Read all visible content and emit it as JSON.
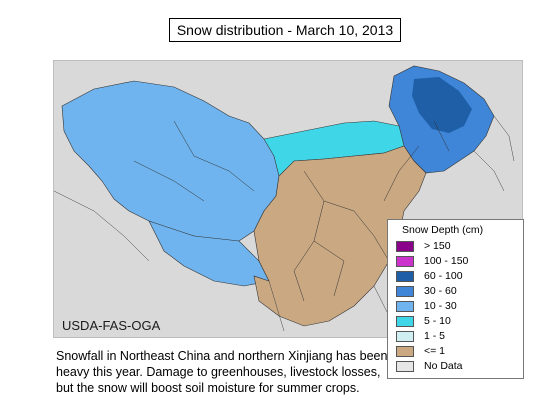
{
  "title": "Snow distribution - March 10, 2013",
  "credit": "USDA-FAS-OGA",
  "legend": {
    "title": "Snow Depth (cm)",
    "items": [
      {
        "label": "> 150",
        "color": "#8b008b"
      },
      {
        "label": "100 - 150",
        "color": "#cc33cc"
      },
      {
        "label": "60 - 100",
        "color": "#1f5fa8"
      },
      {
        "label": "30 - 60",
        "color": "#3f86d8"
      },
      {
        "label": "10 - 30",
        "color": "#6fb4ee"
      },
      {
        "label": "5 - 10",
        "color": "#3fd6e8"
      },
      {
        "label": "1 - 5",
        "color": "#cfeff3"
      },
      {
        "label": "<= 1",
        "color": "#c9a882"
      },
      {
        "label": "No Data",
        "color": "#e6e6e6"
      }
    ]
  },
  "caption": [
    "Snowfall in Northeast China and northern Xinjiang has been",
    "heavy this year.   Damage to greenhouses, livestock losses,",
    "but the snow will boost soil moisture for summer crops."
  ]
}
